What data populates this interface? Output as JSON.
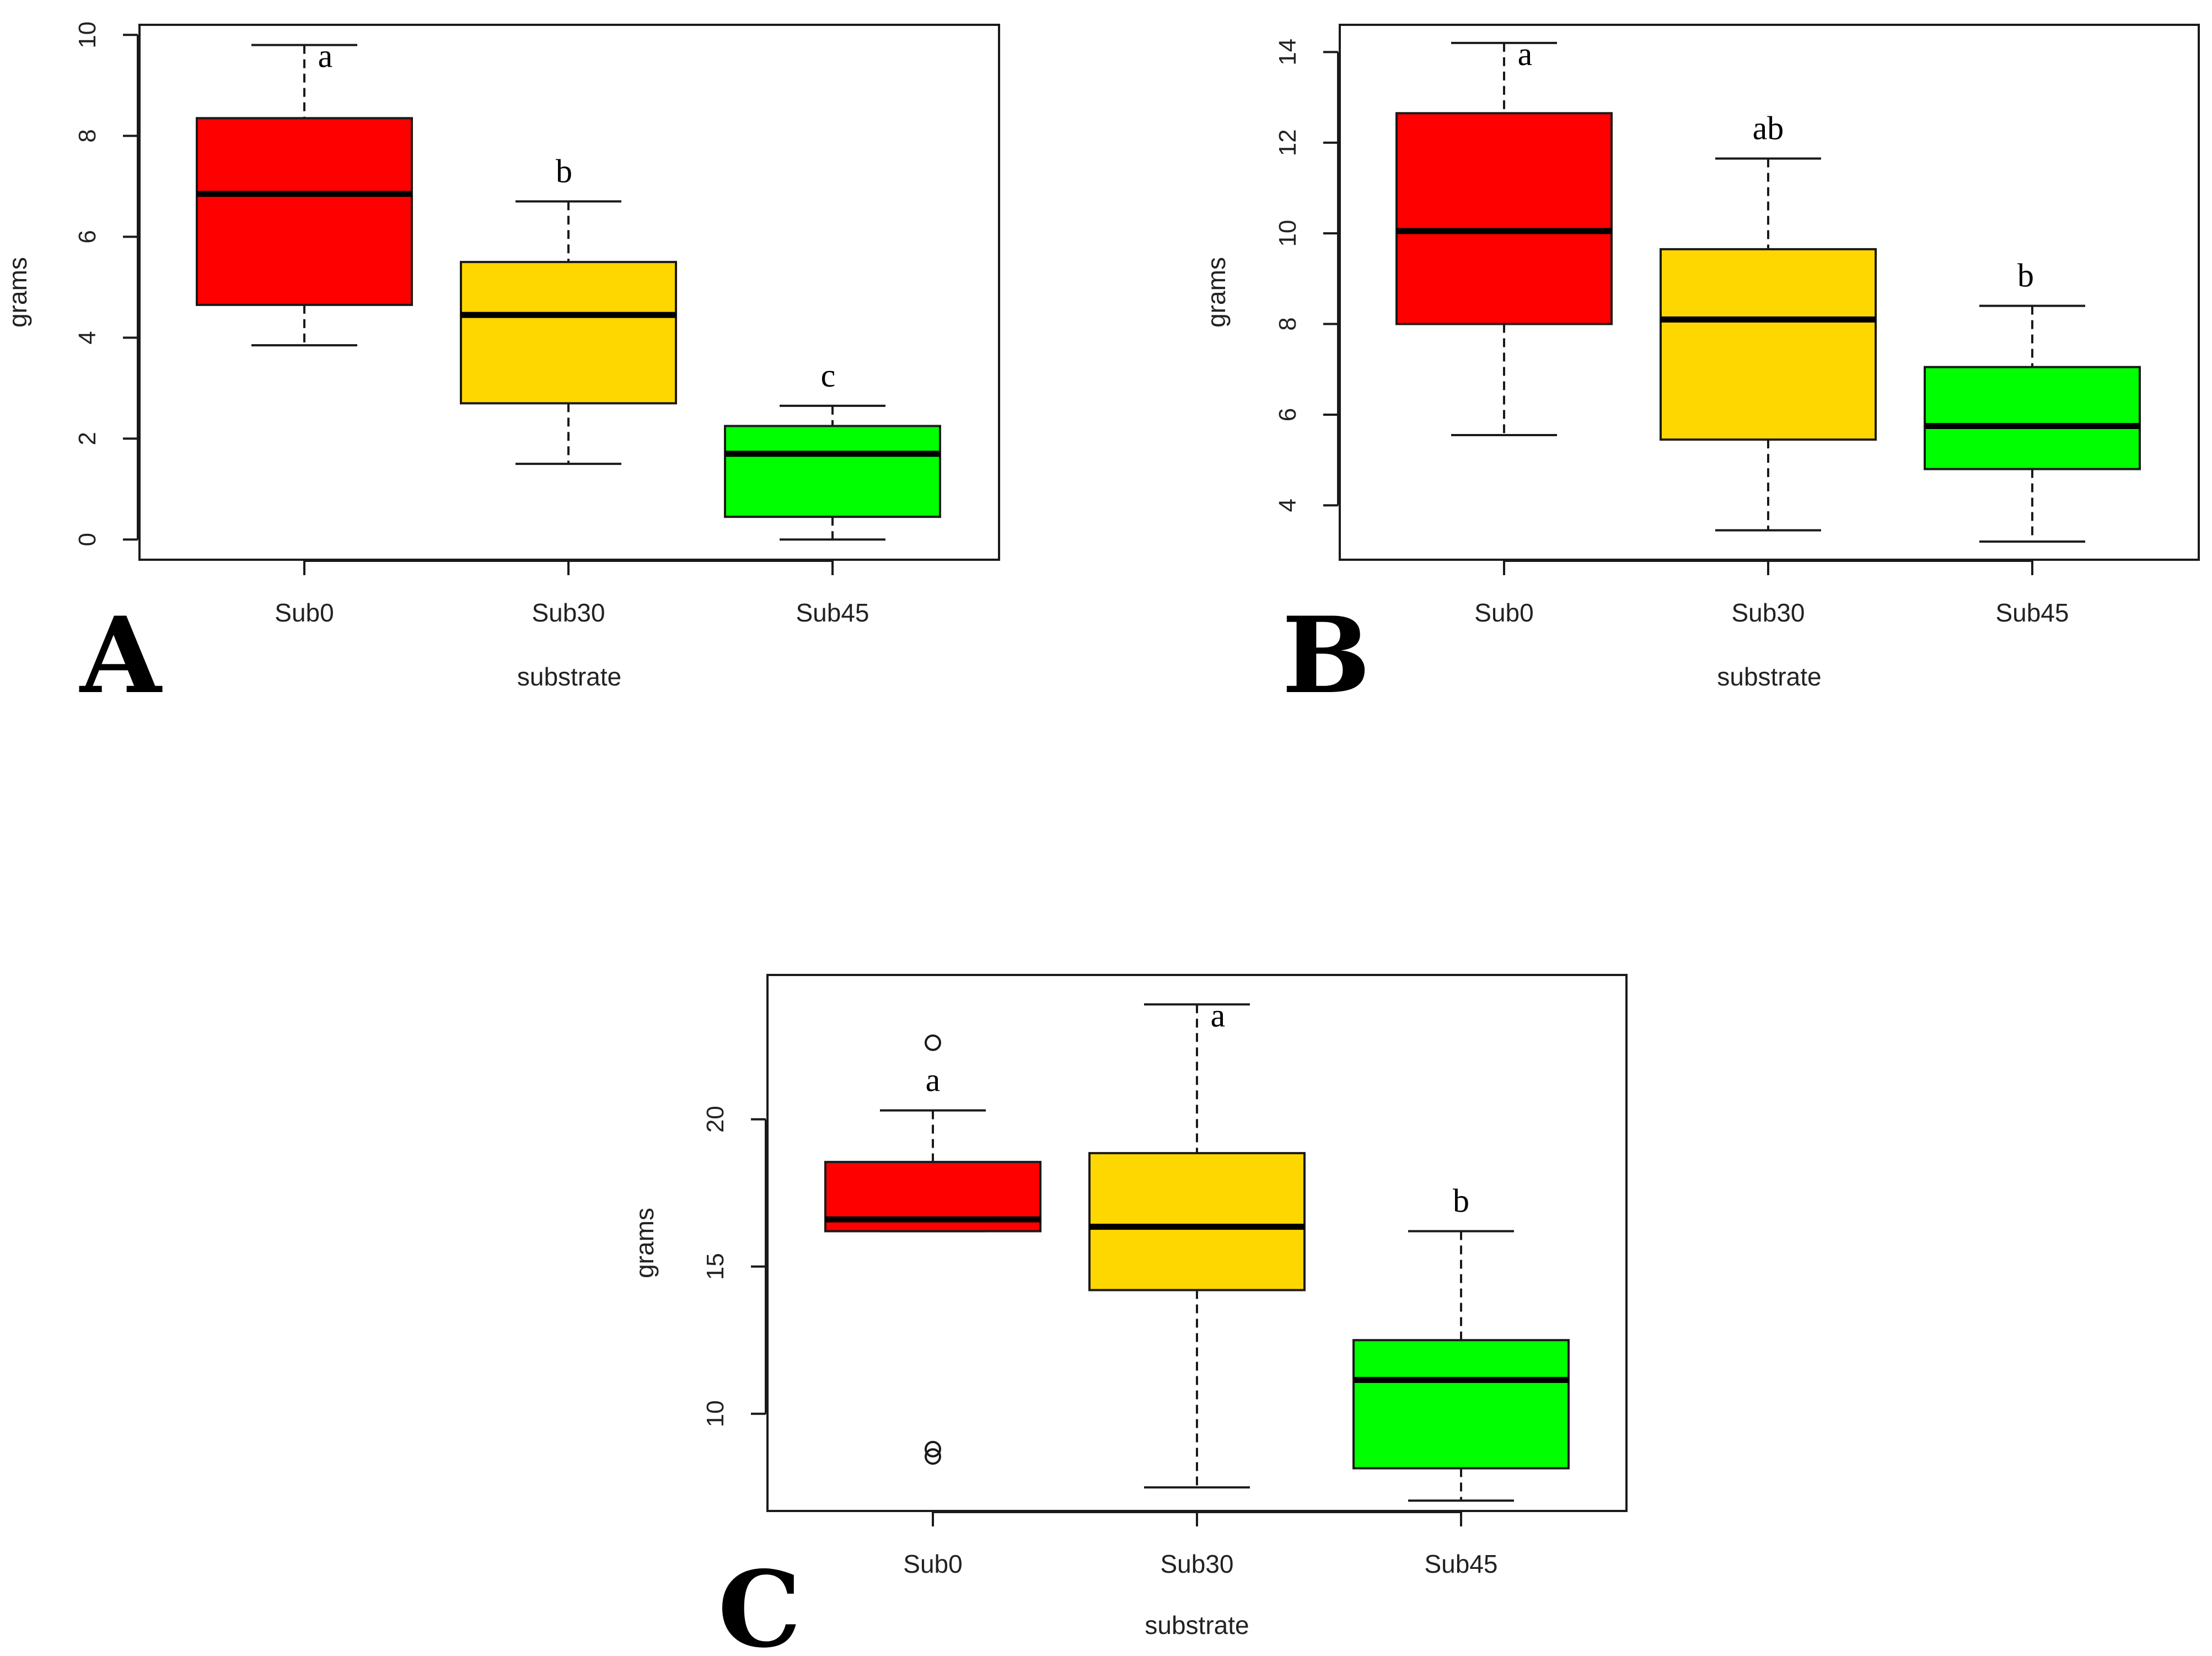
{
  "figure": {
    "panel_order": [
      "A",
      "B",
      "C"
    ]
  },
  "chart_data": [
    {
      "type": "box",
      "panel": "A",
      "categories": [
        "Sub0",
        "Sub30",
        "Sub45"
      ],
      "colors": [
        "#ff0000",
        "#ffd700",
        "#00ff00"
      ],
      "xlabel": "substrate",
      "ylabel": "grams",
      "ylim": [
        -0.4,
        10.2
      ],
      "yticks": [
        0,
        2,
        4,
        6,
        8,
        10
      ],
      "grid": false,
      "boxes": [
        {
          "whisker_low": 3.85,
          "q1": 4.65,
          "median": 6.85,
          "q3": 8.35,
          "whisker_high": 9.8,
          "outliers": [],
          "letter": "a"
        },
        {
          "whisker_low": 1.5,
          "q1": 2.7,
          "median": 4.45,
          "q3": 5.5,
          "whisker_high": 6.7,
          "outliers": [],
          "letter": "b"
        },
        {
          "whisker_low": 0.0,
          "q1": 0.45,
          "median": 1.7,
          "q3": 2.25,
          "whisker_high": 2.65,
          "outliers": [],
          "letter": "c"
        }
      ]
    },
    {
      "type": "box",
      "panel": "B",
      "categories": [
        "Sub0",
        "Sub30",
        "Sub45"
      ],
      "colors": [
        "#ff0000",
        "#ffd700",
        "#00ff00"
      ],
      "xlabel": "substrate",
      "ylabel": "grams",
      "ylim": [
        2.8,
        14.6
      ],
      "yticks": [
        4,
        6,
        8,
        10,
        12,
        14
      ],
      "grid": false,
      "boxes": [
        {
          "whisker_low": 5.55,
          "q1": 8.0,
          "median": 10.05,
          "q3": 12.65,
          "whisker_high": 14.2,
          "outliers": [],
          "letter": "a"
        },
        {
          "whisker_low": 3.45,
          "q1": 5.45,
          "median": 8.1,
          "q3": 9.65,
          "whisker_high": 11.65,
          "outliers": [],
          "letter": "ab"
        },
        {
          "whisker_low": 3.2,
          "q1": 4.8,
          "median": 5.75,
          "q3": 7.05,
          "whisker_high": 8.4,
          "outliers": [],
          "letter": "b"
        }
      ]
    },
    {
      "type": "box",
      "panel": "C",
      "categories": [
        "Sub0",
        "Sub30",
        "Sub45"
      ],
      "colors": [
        "#ff0000",
        "#ffd700",
        "#00ff00"
      ],
      "xlabel": "substrate",
      "ylabel": "grams",
      "ylim": [
        6.7,
        24.9
      ],
      "yticks": [
        10,
        15,
        20
      ],
      "grid": false,
      "boxes": [
        {
          "whisker_low": 16.2,
          "q1": 16.2,
          "median": 16.6,
          "q3": 18.55,
          "whisker_high": 20.3,
          "outliers": [
            22.6,
            8.8,
            8.55
          ],
          "letter": "a"
        },
        {
          "whisker_low": 7.5,
          "q1": 14.2,
          "median": 16.35,
          "q3": 18.85,
          "whisker_high": 23.9,
          "outliers": [],
          "letter": "a"
        },
        {
          "whisker_low": 7.05,
          "q1": 8.15,
          "median": 11.15,
          "q3": 12.5,
          "whisker_high": 16.2,
          "outliers": [],
          "letter": "b"
        }
      ]
    }
  ]
}
